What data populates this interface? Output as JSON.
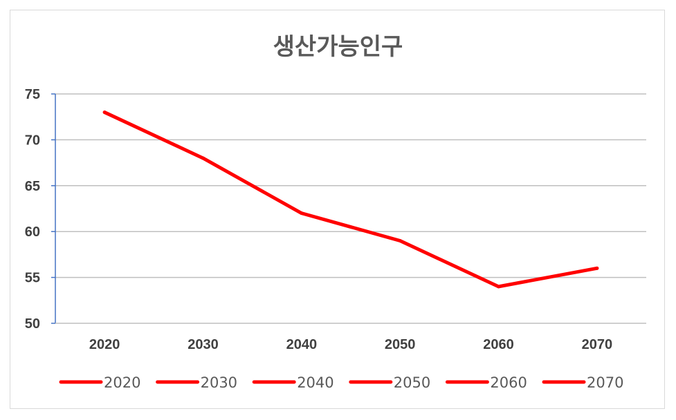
{
  "chart_data": {
    "type": "line",
    "title": "생산가능인구",
    "categories": [
      "2020",
      "2030",
      "2040",
      "2050",
      "2060",
      "2070"
    ],
    "series": [
      {
        "values": [
          73,
          68,
          62,
          59,
          54,
          56
        ]
      }
    ],
    "legend_entries": [
      "2020",
      "2030",
      "2040",
      "2050",
      "2060",
      "2070"
    ],
    "ylim": [
      50,
      75
    ],
    "yticks": [
      50,
      55,
      60,
      65,
      70,
      75
    ],
    "grid": true,
    "legend_placement": "bottom",
    "colors": {
      "line": "#ff0000",
      "grid": "#bfbfbf",
      "axis": "#4472c4"
    }
  }
}
